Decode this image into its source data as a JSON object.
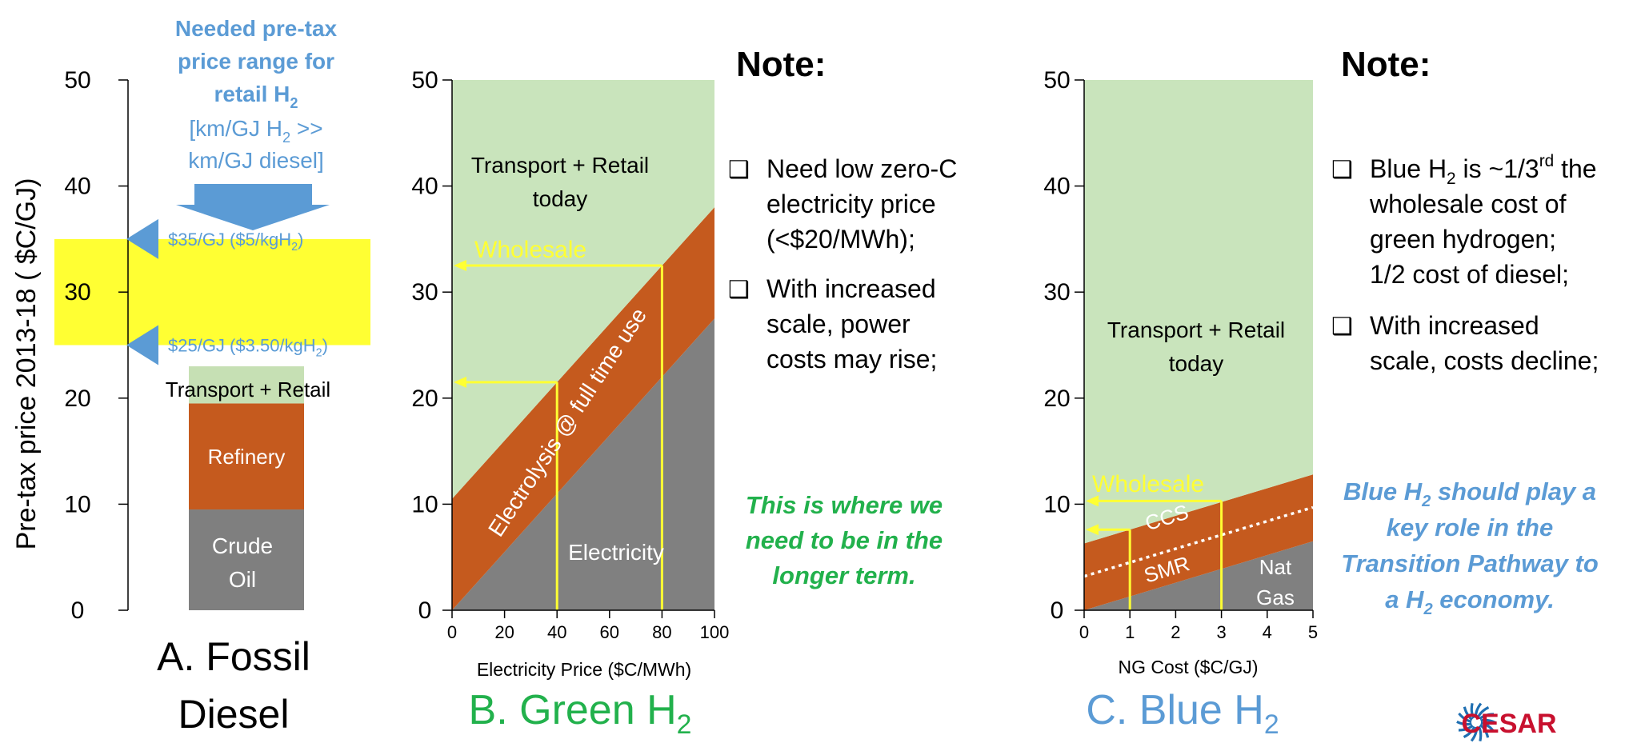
{
  "y_axis_label": "Pre-tax price 2013-18  ( $C/GJ)",
  "chart_data": [
    {
      "type": "bar",
      "id": "A",
      "title_line1": "A. Fossil",
      "title_line2": "Diesel",
      "ylim": [
        0,
        50
      ],
      "y_ticks": [
        "0",
        "10",
        "20",
        "30",
        "40",
        "50"
      ],
      "stack": [
        {
          "name": "Crude Oil",
          "label_line1": "Crude",
          "label_line2": "Oil",
          "from": 0,
          "to": 9.5,
          "color": "#7f7f7f"
        },
        {
          "name": "Refinery",
          "label": "Refinery",
          "from": 9.5,
          "to": 19.5,
          "color": "#c55a1e"
        },
        {
          "name": "Transport + Retail",
          "label": "Transport + Retail",
          "from": 19.5,
          "to": 23,
          "color": "#c6e0b4"
        }
      ],
      "target_band": {
        "from": 25,
        "to": 35,
        "color": "#ffff33"
      },
      "needed_text": {
        "line1": "Needed pre-tax",
        "line2": "price range for",
        "line3": "retail H",
        "line3_sub": "2",
        "line4a": "[km/GJ H",
        "line4_sub": "2",
        "line4b": " >>",
        "line5": "km/GJ diesel]"
      },
      "markers": [
        {
          "value": 35,
          "text": "$35/GJ ($5/kgH",
          "sub": "2",
          "tail": ")"
        },
        {
          "value": 25,
          "text": "$25/GJ ($3.50/kgH",
          "sub": "2",
          "tail": ")"
        }
      ]
    },
    {
      "type": "area",
      "id": "B",
      "title": "B. Green H",
      "title_sub": "2",
      "xlabel": "Electricity Price ($C/MWh)",
      "xlim": [
        0,
        100
      ],
      "ylim": [
        0,
        50
      ],
      "x_ticks": [
        "0",
        "20",
        "40",
        "60",
        "80",
        "100"
      ],
      "y_ticks": [
        "0",
        "10",
        "20",
        "30",
        "40",
        "50"
      ],
      "series": [
        {
          "name": "Electricity",
          "x": [
            0,
            100
          ],
          "lower": [
            0,
            0
          ],
          "upper": [
            0,
            27.5
          ],
          "color": "#808080"
        },
        {
          "name": "Electrolysis @ full time use",
          "x": [
            0,
            100
          ],
          "lower": [
            0,
            27.5
          ],
          "upper": [
            10.5,
            38
          ],
          "color": "#c55a1e"
        },
        {
          "name": "Transport + Retail today",
          "x": [
            0,
            100
          ],
          "lower": [
            10.5,
            38
          ],
          "upper": [
            50,
            50
          ],
          "color": "#c9e4bc"
        }
      ],
      "labels": {
        "transport_line1": "Transport + Retail",
        "transport_line2": "today",
        "electrolysis": "Electrolysis @ full time use",
        "electricity": "Electricity",
        "wholesale": "Wholesale"
      },
      "guides": [
        {
          "x": 40,
          "y": 21.5
        },
        {
          "x": 80,
          "y": 32.5
        }
      ]
    },
    {
      "type": "area",
      "id": "C",
      "title": "C. Blue H",
      "title_sub": "2",
      "xlabel": "NG Cost ($C/GJ)",
      "xlim": [
        0,
        5
      ],
      "ylim": [
        0,
        50
      ],
      "x_ticks": [
        "0",
        "1",
        "2",
        "3",
        "4",
        "5"
      ],
      "y_ticks": [
        "0",
        "10",
        "20",
        "30",
        "40",
        "50"
      ],
      "series": [
        {
          "name": "Nat Gas",
          "x": [
            0,
            5
          ],
          "lower": [
            0,
            0
          ],
          "upper": [
            0,
            6.5
          ],
          "color": "#808080"
        },
        {
          "name": "SMR",
          "x": [
            0,
            5
          ],
          "lower": [
            0,
            6.5
          ],
          "upper": [
            3.2,
            9.7
          ],
          "color": "#c55a1e"
        },
        {
          "name": "CCS",
          "x": [
            0,
            5
          ],
          "lower": [
            3.2,
            9.7
          ],
          "upper": [
            6.3,
            12.8
          ],
          "color": "#c55a1e"
        },
        {
          "name": "Transport + Retail today",
          "x": [
            0,
            5
          ],
          "lower": [
            6.3,
            12.8
          ],
          "upper": [
            50,
            50
          ],
          "color": "#c9e4bc"
        }
      ],
      "labels": {
        "transport_line1": "Transport + Retail",
        "transport_line2": "today",
        "ccs": "CCS",
        "smr": "SMR",
        "natgas_line1": "Nat",
        "natgas_line2": "Gas",
        "wholesale": "Wholesale"
      },
      "guides": [
        {
          "x": 1,
          "y": 7.6
        },
        {
          "x": 3,
          "y": 10.3
        }
      ]
    }
  ],
  "note_b": {
    "title": "Note:",
    "box": "❑",
    "item1": [
      "Need low zero-C",
      "electricity price",
      "(<$20/MWh);"
    ],
    "item2": [
      "With increased",
      "scale, power",
      "costs may rise;"
    ],
    "emphasis": [
      "This is where we",
      "need to be in the",
      "longer term."
    ]
  },
  "note_c": {
    "title": "Note:",
    "box": "❑",
    "item1_a": "Blue H",
    "item1_sub": "2",
    "item1_b": " is ~1/3",
    "item1_sup": "rd",
    "item1_c": " the",
    "item1_rest": [
      "wholesale cost of",
      "green hydrogen;",
      "1/2 cost of diesel;"
    ],
    "item2": [
      "With increased",
      "scale, costs decline;"
    ],
    "emphasis_a": "Blue H",
    "emphasis_sub": "2",
    "emphasis_b": " should play a",
    "emphasis_rest": [
      "key role in the",
      "Transition Pathway to"
    ],
    "emphasis_last_a": "a H",
    "emphasis_last_sub": "2",
    "emphasis_last_b": " economy."
  },
  "logo_text": "CESAR",
  "colors": {
    "green_text": "#22b14c",
    "blue_text": "#5b9bd5",
    "yellow": "#ffff33",
    "logo_red": "#c8102e"
  }
}
